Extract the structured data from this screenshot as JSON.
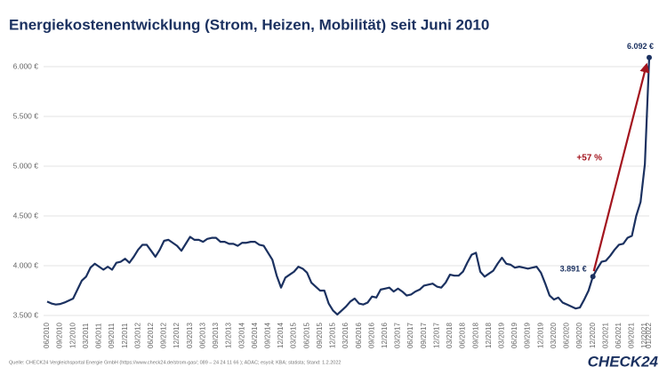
{
  "chart_data": {
    "type": "line",
    "title": "Energiekostenentwicklung (Strom, Heizen, Mobilität) seit Juni 2010",
    "categories": [
      "06/2010",
      null,
      null,
      "09/2010",
      null,
      null,
      "12/2010",
      null,
      null,
      "03/2011",
      null,
      null,
      "06/2011",
      null,
      null,
      "09/2011",
      null,
      null,
      "12/2011",
      null,
      null,
      "03/2012",
      null,
      null,
      "06/2012",
      null,
      null,
      "09/2012",
      null,
      null,
      "12/2012",
      null,
      null,
      "03/2013",
      null,
      null,
      "06/2013",
      null,
      null,
      "09/2013",
      null,
      null,
      "12/2013",
      null,
      null,
      "03/2014",
      null,
      null,
      "06/2014",
      null,
      null,
      "09/2014",
      null,
      null,
      "12/2014",
      null,
      null,
      "03/2015",
      null,
      null,
      "06/2015",
      null,
      null,
      "09/2015",
      null,
      null,
      "12/2015",
      null,
      null,
      "03/2016",
      null,
      null,
      "06/2016",
      null,
      null,
      "09/2016",
      null,
      null,
      "12/2016",
      null,
      null,
      "03/2017",
      null,
      null,
      "06/2017",
      null,
      null,
      "09/2017",
      null,
      null,
      "12/2017",
      null,
      null,
      "03/2018",
      null,
      null,
      "06/2018",
      null,
      null,
      "09/2018",
      null,
      null,
      "12/2018",
      null,
      null,
      "03/2019",
      null,
      null,
      "06/2019",
      null,
      null,
      "09/2019",
      null,
      null,
      "12/2019",
      null,
      null,
      "03/2020",
      null,
      null,
      "06/2020",
      null,
      null,
      "09/2020",
      null,
      null,
      "12/2020",
      null,
      null,
      "03/2021",
      null,
      null,
      "06/2021",
      null,
      null,
      "09/2021",
      null,
      null,
      "12/2021",
      "01/2022"
    ],
    "series": [
      {
        "color": "#1b3160",
        "values": [
          3640,
          3620,
          3610,
          3615,
          3630,
          3650,
          3670,
          3760,
          3850,
          3890,
          3980,
          4020,
          3990,
          3960,
          3990,
          3960,
          4030,
          4040,
          4070,
          4030,
          4090,
          4160,
          4210,
          4210,
          4150,
          4090,
          4160,
          4250,
          4260,
          4230,
          4200,
          4150,
          4220,
          4290,
          4260,
          4260,
          4240,
          4270,
          4280,
          4280,
          4240,
          4240,
          4220,
          4220,
          4200,
          4230,
          4230,
          4240,
          4240,
          4210,
          4200,
          4130,
          4060,
          3900,
          3780,
          3880,
          3910,
          3940,
          3990,
          3970,
          3930,
          3830,
          3790,
          3750,
          3750,
          3620,
          3550,
          3510,
          3550,
          3590,
          3640,
          3670,
          3620,
          3610,
          3630,
          3690,
          3680,
          3760,
          3770,
          3780,
          3740,
          3770,
          3740,
          3700,
          3710,
          3740,
          3760,
          3800,
          3810,
          3820,
          3790,
          3780,
          3830,
          3910,
          3900,
          3900,
          3940,
          4030,
          4110,
          4130,
          3940,
          3890,
          3920,
          3950,
          4020,
          4080,
          4020,
          4010,
          3980,
          3990,
          3980,
          3970,
          3980,
          3990,
          3930,
          3820,
          3700,
          3660,
          3680,
          3630,
          3610,
          3590,
          3570,
          3580,
          3660,
          3750,
          3891,
          3970,
          4040,
          4050,
          4100,
          4160,
          4210,
          4220,
          4280,
          4300,
          4500,
          4640,
          5020,
          6092
        ],
        "value_labels": [
          null,
          null,
          null,
          null,
          null,
          null,
          null,
          null,
          null,
          null,
          null,
          null,
          null,
          null,
          null,
          null,
          null,
          null,
          null,
          null,
          null,
          null,
          null,
          null,
          null,
          null,
          null,
          null,
          null,
          null,
          null,
          null,
          null,
          null,
          null,
          null,
          null,
          null,
          null,
          null,
          null,
          null,
          null,
          null,
          null,
          null,
          null,
          null,
          null,
          null,
          null,
          null,
          null,
          null,
          null,
          null,
          null,
          null,
          null,
          null,
          null,
          null,
          null,
          null,
          null,
          null,
          null,
          null,
          null,
          null,
          null,
          null,
          null,
          null,
          null,
          null,
          null,
          null,
          null,
          null,
          null,
          null,
          null,
          null,
          null,
          null,
          null,
          null,
          null,
          null,
          null,
          null,
          null,
          null,
          null,
          null,
          null,
          null,
          null,
          null,
          null,
          null,
          null,
          null,
          null,
          null,
          null,
          null,
          null,
          null,
          null,
          null,
          null,
          null,
          null,
          null,
          null,
          null,
          null,
          null,
          null,
          null,
          null,
          null,
          null,
          null,
          "3.891 €",
          null,
          null,
          null,
          null,
          null,
          null,
          null,
          null,
          null,
          null,
          null,
          null,
          "6.092 €"
        ]
      }
    ],
    "annotation": {
      "text": "+57 %",
      "color": "#a3141e"
    },
    "ylim": [
      3500,
      6100
    ],
    "yticks": [
      {
        "value": 3500,
        "label": "3.500 €"
      },
      {
        "value": 4000,
        "label": "4.000 €"
      },
      {
        "value": 4500,
        "label": "4.500 €"
      },
      {
        "value": 5000,
        "label": "5.000 €"
      },
      {
        "value": 5500,
        "label": "5.500 €"
      },
      {
        "value": 6000,
        "label": "6.000 €"
      }
    ],
    "grid": true
  },
  "footer": {
    "source": "Quelle: CHECK24 Vergleichsportal Energie GmbH (https://www.check24.de/strom-gas/; 089 – 24 24 11 66 ); ADAC; esyoil; KBA; statista; Stand: 1.2.2022",
    "logo": "CHECK24"
  }
}
